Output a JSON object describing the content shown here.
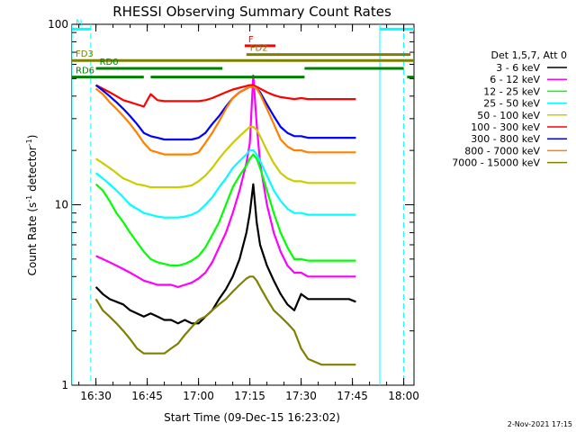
{
  "chart_data": {
    "type": "line",
    "title": "RHESSI Observing Summary Count Rates",
    "xlabel": "Start Time (09-Dec-15 16:23:02)",
    "ylabel_main": "Count Rate (s",
    "ylabel_sup1": "-1",
    "ylabel_mid": " detector",
    "ylabel_sup2": "-1",
    "ylabel_end": ")",
    "y_scale": "log",
    "ylim": [
      1,
      100
    ],
    "xlim_min": [
      983,
      1083
    ],
    "x_ticks": [
      {
        "min": 990,
        "label": "16:30"
      },
      {
        "min": 1005,
        "label": "16:45"
      },
      {
        "min": 1020,
        "label": "17:00"
      },
      {
        "min": 1035,
        "label": "17:15"
      },
      {
        "min": 1050,
        "label": "17:30"
      },
      {
        "min": 1065,
        "label": "17:45"
      },
      {
        "min": 1080,
        "label": "18:00"
      }
    ],
    "y_ticks": [
      {
        "value": 1,
        "label": "1"
      },
      {
        "value": 10,
        "label": "10"
      },
      {
        "value": 100,
        "label": "100"
      }
    ],
    "legend_header": "Det 1,5,7, Att 0",
    "legend": "right",
    "series": [
      {
        "name": "3 - 6 keV",
        "color": "#000000",
        "x": [
          990,
          992,
          994,
          996,
          998,
          1000,
          1002,
          1004,
          1006,
          1008,
          1010,
          1012,
          1014,
          1016,
          1018,
          1020,
          1022,
          1024,
          1026,
          1028,
          1030,
          1032,
          1034,
          1035,
          1036,
          1037,
          1038,
          1040,
          1042,
          1044,
          1046,
          1048,
          1050,
          1052,
          1056,
          1060,
          1064,
          1066
        ],
        "y": [
          3.5,
          3.2,
          3.0,
          2.9,
          2.8,
          2.6,
          2.5,
          2.4,
          2.5,
          2.4,
          2.3,
          2.3,
          2.2,
          2.3,
          2.2,
          2.2,
          2.4,
          2.6,
          3.0,
          3.4,
          4.0,
          5.0,
          7.0,
          9.0,
          13.0,
          8.0,
          6.0,
          4.6,
          3.8,
          3.2,
          2.8,
          2.6,
          3.2,
          3.0,
          3.0,
          3.0,
          3.0,
          2.9
        ]
      },
      {
        "name": "6 - 12 keV",
        "color": "#ff00ff",
        "x": [
          990,
          992,
          994,
          996,
          998,
          1000,
          1002,
          1004,
          1006,
          1008,
          1010,
          1012,
          1014,
          1016,
          1018,
          1020,
          1022,
          1024,
          1026,
          1028,
          1030,
          1032,
          1034,
          1035,
          1036,
          1037,
          1038,
          1040,
          1042,
          1044,
          1046,
          1048,
          1050,
          1052,
          1056,
          1060,
          1064,
          1066
        ],
        "y": [
          5.2,
          5.0,
          4.8,
          4.6,
          4.4,
          4.2,
          4.0,
          3.8,
          3.7,
          3.6,
          3.6,
          3.6,
          3.5,
          3.6,
          3.7,
          3.9,
          4.2,
          4.8,
          5.8,
          7.0,
          9.0,
          12.0,
          17.0,
          22.0,
          52.0,
          28.0,
          17.0,
          10.0,
          7.0,
          5.5,
          4.6,
          4.2,
          4.2,
          4.0,
          4.0,
          4.0,
          4.0,
          4.0
        ]
      },
      {
        "name": "12 - 25 keV",
        "color": "#00ff00",
        "x": [
          990,
          992,
          994,
          996,
          998,
          1000,
          1002,
          1004,
          1006,
          1008,
          1010,
          1012,
          1014,
          1016,
          1018,
          1020,
          1022,
          1024,
          1026,
          1028,
          1030,
          1032,
          1034,
          1035,
          1036,
          1037,
          1038,
          1040,
          1042,
          1044,
          1046,
          1048,
          1050,
          1052,
          1056,
          1060,
          1064,
          1066
        ],
        "y": [
          13.0,
          12.0,
          10.5,
          9.0,
          8.0,
          7.0,
          6.2,
          5.5,
          5.0,
          4.8,
          4.7,
          4.6,
          4.6,
          4.7,
          4.9,
          5.2,
          5.8,
          6.8,
          8.0,
          10.0,
          12.5,
          14.5,
          16.5,
          18.0,
          19.0,
          18.0,
          16.0,
          12.0,
          9.0,
          7.0,
          5.8,
          5.0,
          5.0,
          4.9,
          4.9,
          4.9,
          4.9,
          4.9
        ]
      },
      {
        "name": "25 - 50 keV",
        "color": "#00ffff",
        "x": [
          990,
          992,
          994,
          996,
          998,
          1000,
          1002,
          1004,
          1006,
          1008,
          1010,
          1012,
          1014,
          1016,
          1018,
          1020,
          1022,
          1024,
          1026,
          1028,
          1030,
          1032,
          1034,
          1035,
          1036,
          1037,
          1038,
          1040,
          1042,
          1044,
          1046,
          1048,
          1050,
          1052,
          1056,
          1060,
          1064,
          1066
        ],
        "y": [
          15.0,
          14.0,
          13.0,
          12.0,
          11.0,
          10.0,
          9.5,
          9.0,
          8.8,
          8.6,
          8.5,
          8.5,
          8.5,
          8.6,
          8.8,
          9.2,
          10.0,
          11.0,
          12.5,
          14.0,
          16.0,
          17.5,
          19.0,
          20.0,
          20.0,
          19.0,
          17.5,
          14.5,
          12.0,
          10.5,
          9.5,
          9.0,
          9.0,
          8.8,
          8.8,
          8.8,
          8.8,
          8.8
        ]
      },
      {
        "name": "50 - 100 keV",
        "color": "#cccc00",
        "x": [
          990,
          992,
          994,
          996,
          998,
          1000,
          1002,
          1004,
          1006,
          1008,
          1010,
          1012,
          1014,
          1016,
          1018,
          1020,
          1022,
          1024,
          1026,
          1028,
          1030,
          1032,
          1034,
          1035,
          1036,
          1037,
          1038,
          1040,
          1042,
          1044,
          1046,
          1048,
          1050,
          1052,
          1056,
          1060,
          1064,
          1066
        ],
        "y": [
          18.0,
          17.0,
          16.0,
          15.0,
          14.0,
          13.5,
          13.0,
          12.8,
          12.5,
          12.5,
          12.5,
          12.5,
          12.5,
          12.6,
          12.8,
          13.5,
          14.5,
          16.0,
          18.0,
          20.0,
          22.0,
          24.0,
          26.0,
          27.0,
          27.0,
          26.0,
          24.0,
          20.0,
          17.0,
          15.0,
          14.0,
          13.5,
          13.5,
          13.2,
          13.2,
          13.2,
          13.2,
          13.2
        ]
      },
      {
        "name": "100 - 300 keV",
        "color": "#ff0000",
        "x": [
          990,
          992,
          994,
          996,
          998,
          1000,
          1002,
          1004,
          1006,
          1008,
          1010,
          1012,
          1014,
          1016,
          1018,
          1020,
          1022,
          1024,
          1026,
          1028,
          1030,
          1032,
          1034,
          1035,
          1036,
          1037,
          1038,
          1040,
          1042,
          1044,
          1046,
          1048,
          1050,
          1052,
          1056,
          1060,
          1064,
          1066
        ],
        "y": [
          46.0,
          44.0,
          42.0,
          40.0,
          38.0,
          37.0,
          36.0,
          35.0,
          41.0,
          38.0,
          37.5,
          37.5,
          37.5,
          37.5,
          37.5,
          37.5,
          38.0,
          39.0,
          40.5,
          42.0,
          43.5,
          44.5,
          45.5,
          46.0,
          46.0,
          45.0,
          44.0,
          42.0,
          40.5,
          39.5,
          39.0,
          38.5,
          39.0,
          38.5,
          38.5,
          38.5,
          38.5,
          38.5
        ]
      },
      {
        "name": "300 - 800 keV",
        "color": "#0000ff",
        "x": [
          990,
          992,
          994,
          996,
          998,
          1000,
          1002,
          1004,
          1006,
          1008,
          1010,
          1012,
          1014,
          1016,
          1018,
          1020,
          1022,
          1024,
          1026,
          1028,
          1030,
          1032,
          1034,
          1035,
          1036,
          1037,
          1038,
          1040,
          1042,
          1044,
          1046,
          1048,
          1050,
          1052,
          1056,
          1060,
          1064,
          1066
        ],
        "y": [
          46.0,
          43.0,
          40.0,
          37.0,
          34.0,
          31.0,
          28.0,
          25.0,
          24.0,
          23.5,
          23.0,
          23.0,
          23.0,
          23.0,
          23.0,
          23.5,
          25.0,
          28.0,
          31.0,
          35.0,
          39.0,
          42.0,
          44.0,
          45.0,
          45.0,
          44.0,
          42.0,
          36.0,
          31.0,
          27.0,
          25.0,
          24.0,
          24.0,
          23.5,
          23.5,
          23.5,
          23.5,
          23.5
        ]
      },
      {
        "name": "800 - 7000 keV",
        "color": "#ff8000",
        "x": [
          990,
          992,
          994,
          996,
          998,
          1000,
          1002,
          1004,
          1006,
          1008,
          1010,
          1012,
          1014,
          1016,
          1018,
          1020,
          1022,
          1024,
          1026,
          1028,
          1030,
          1032,
          1034,
          1035,
          1036,
          1037,
          1038,
          1040,
          1042,
          1044,
          1046,
          1048,
          1050,
          1052,
          1056,
          1060,
          1064,
          1066
        ],
        "y": [
          44.0,
          41.0,
          37.0,
          34.0,
          31.0,
          28.0,
          25.0,
          22.0,
          20.0,
          19.5,
          19.0,
          19.0,
          19.0,
          19.0,
          19.0,
          19.5,
          22.0,
          25.0,
          29.0,
          34.0,
          39.0,
          42.0,
          44.0,
          45.0,
          45.0,
          44.0,
          41.0,
          34.0,
          28.0,
          23.0,
          21.0,
          20.0,
          20.0,
          19.5,
          19.5,
          19.5,
          19.5,
          19.5
        ]
      },
      {
        "name": "7000 - 15000 keV",
        "color": "#808000",
        "x": [
          990,
          992,
          994,
          996,
          998,
          1000,
          1002,
          1004,
          1006,
          1008,
          1010,
          1012,
          1014,
          1016,
          1018,
          1020,
          1022,
          1024,
          1026,
          1028,
          1030,
          1032,
          1034,
          1035,
          1036,
          1037,
          1038,
          1040,
          1042,
          1044,
          1046,
          1048,
          1050,
          1052,
          1056,
          1060,
          1064,
          1066
        ],
        "y": [
          3.0,
          2.6,
          2.4,
          2.2,
          2.0,
          1.8,
          1.6,
          1.5,
          1.5,
          1.5,
          1.5,
          1.6,
          1.7,
          1.9,
          2.1,
          2.3,
          2.4,
          2.6,
          2.8,
          3.0,
          3.3,
          3.6,
          3.9,
          4.0,
          4.0,
          3.8,
          3.5,
          3.0,
          2.6,
          2.4,
          2.2,
          2.0,
          1.6,
          1.4,
          1.3,
          1.3,
          1.3,
          1.3
        ]
      }
    ],
    "flag_bars": [
      {
        "label": "N",
        "color": "#00ffff",
        "x_range": [
          983,
          988.5
        ],
        "y_value": 94
      },
      {
        "label": "",
        "color": "#00ffff",
        "x_range": [
          1073,
          1083
        ],
        "y_value": 94
      },
      {
        "label": "F",
        "color": "#ff0000",
        "x_range": [
          1033.5,
          1042.5
        ],
        "y_value": 76
      },
      {
        "label": "FD2",
        "color": "#808000",
        "x_range": [
          1034,
          1082
        ],
        "y_value": 68
      },
      {
        "label": "FD3",
        "color": "#808000",
        "x_range": [
          983,
          1083
        ],
        "y_value": 63
      },
      {
        "label": "RD0",
        "color": "#008000",
        "x_range": [
          990,
          1027
        ],
        "y_value": 57
      },
      {
        "label": "",
        "color": "#008000",
        "x_range": [
          1051,
          1080
        ],
        "y_value": 57
      },
      {
        "label": "RD6",
        "color": "#008000",
        "x_range": [
          983,
          1004
        ],
        "y_value": 51
      },
      {
        "label": "",
        "color": "#008000",
        "x_range": [
          1006,
          1051
        ],
        "y_value": 51
      },
      {
        "label": "",
        "color": "#008000",
        "x_range": [
          1081,
          1083
        ],
        "y_value": 51
      }
    ],
    "vertical_markers": [
      {
        "x": 983,
        "color": "#00ffff",
        "style": "solid"
      },
      {
        "x": 988.5,
        "color": "#00ffff",
        "style": "dashed"
      },
      {
        "x": 1073,
        "color": "#00ffff",
        "style": "solid"
      },
      {
        "x": 1080,
        "color": "#00ffff",
        "style": "dashed"
      }
    ]
  },
  "footer": {
    "date": "2-Nov-2021 17:15"
  }
}
